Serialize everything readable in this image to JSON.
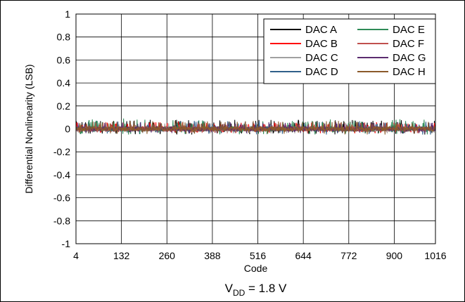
{
  "chart_data": {
    "type": "line",
    "xlabel": "Code",
    "ylabel": "Differential Nonlinearity (LSB)",
    "caption_main": "V",
    "caption_sub": "DD",
    "caption_rest": " = 1.8 V",
    "xlim": [
      4,
      1016
    ],
    "ylim": [
      -1,
      1
    ],
    "xticks": [
      4,
      132,
      260,
      388,
      516,
      644,
      772,
      900,
      1016
    ],
    "yticks": [
      1,
      0.8,
      0.6,
      0.4,
      0.2,
      0,
      -0.2,
      -0.4,
      -0.6,
      -0.8,
      -1
    ],
    "ytick_labels": [
      "1",
      "0.8",
      "0.6",
      "0.4",
      "0.2",
      "0",
      "-0.2",
      "-0.4",
      "-0.6",
      "-0.8",
      "-1"
    ],
    "grid": true,
    "legend_position": "top-right",
    "series": [
      {
        "name": "DAC A",
        "color": "#000000",
        "peak": 0.08,
        "trough": -0.05
      },
      {
        "name": "DAC B",
        "color": "#ff0000",
        "peak": 0.06,
        "trough": -0.04
      },
      {
        "name": "DAC C",
        "color": "#a0a0a0",
        "peak": 0.05,
        "trough": -0.04
      },
      {
        "name": "DAC D",
        "color": "#2f5f8a",
        "peak": 0.07,
        "trough": -0.05
      },
      {
        "name": "DAC E",
        "color": "#2e8b57",
        "peak": 0.09,
        "trough": -0.05
      },
      {
        "name": "DAC F",
        "color": "#c0504d",
        "peak": 0.06,
        "trough": -0.04
      },
      {
        "name": "DAC G",
        "color": "#5b2c6f",
        "peak": 0.06,
        "trough": -0.04
      },
      {
        "name": "DAC H",
        "color": "#8b5a2b",
        "peak": 0.07,
        "trough": -0.05
      }
    ]
  }
}
